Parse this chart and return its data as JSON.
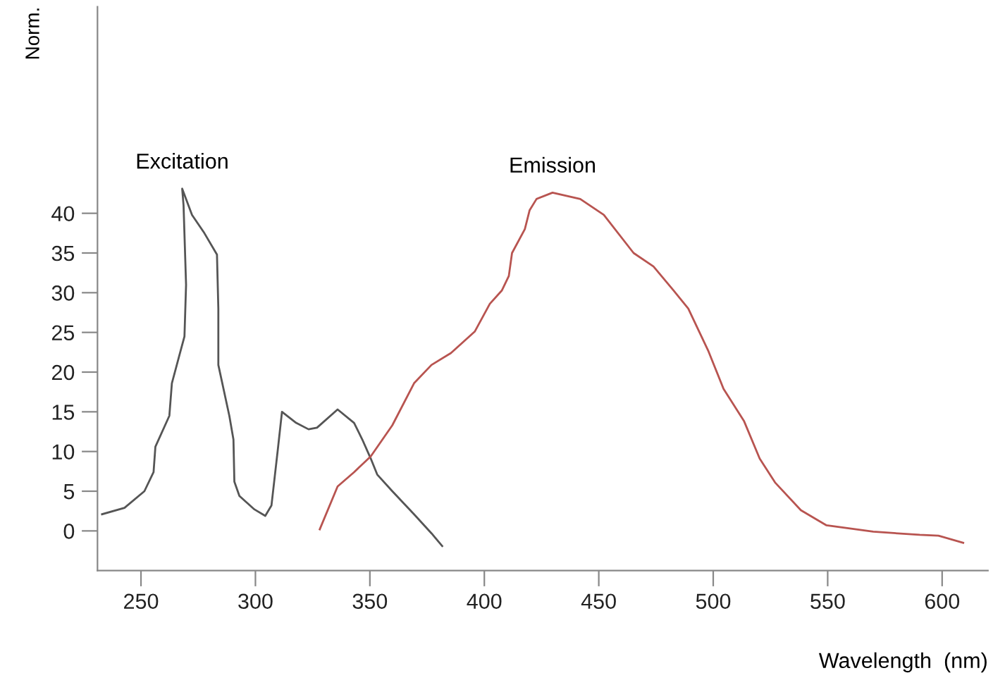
{
  "chart_data": {
    "type": "line",
    "xlabel": "Wavelength  (nm)",
    "ylabel": "Norm.",
    "xlim": [
      231,
      620
    ],
    "xticks": [
      250,
      300,
      350,
      400,
      450,
      500,
      550,
      600
    ],
    "ylim": [
      -5,
      66
    ],
    "yticks": [
      0,
      5,
      10,
      15,
      20,
      25,
      30,
      35,
      40
    ],
    "grid": false,
    "legend": false,
    "marker": "none",
    "line_style": "solid",
    "series": [
      {
        "name": "Excitation",
        "color": "#555555",
        "x": [
          233,
          242.8,
          251.5,
          255.5,
          256.3,
          262.4,
          263.5,
          269,
          269.7,
          268.6,
          268,
          272.3,
          277.7,
          283.2,
          283.8,
          283.8,
          288.6,
          290.4,
          290.8,
          293,
          299.6,
          304.3,
          307,
          309.8,
          311.6,
          317.8,
          323.2,
          326.9,
          335.9,
          343.1,
          346.7,
          350.4,
          353.2,
          359.8,
          369.3,
          376.9,
          381.6
        ],
        "values": [
          2.1,
          2.9,
          5.0,
          7.4,
          10.6,
          14.5,
          18.6,
          24.5,
          31,
          41,
          43.1,
          39.8,
          37.5,
          34.8,
          28,
          20.9,
          14.5,
          11.5,
          6.2,
          4.4,
          2.7,
          1.9,
          3.2,
          10.3,
          15.0,
          13.6,
          12.8,
          13.0,
          15.3,
          13.6,
          11.5,
          9.1,
          7.1,
          5.0,
          2.1,
          -0.3,
          -1.9
        ]
      },
      {
        "name": "Emission",
        "color": "#b85450",
        "x": [
          328.1,
          335.9,
          343.1,
          350.4,
          359.8,
          369.3,
          376.9,
          385.4,
          395.8,
          402.4,
          407.7,
          410.7,
          412.1,
          417.7,
          419.8,
          422.8,
          429.8,
          441.9,
          452.2,
          465.2,
          473.9,
          482.6,
          489.1,
          497.8,
          504.5,
          513.5,
          520.3,
          527.0,
          538.3,
          549.5,
          569.9,
          590.2,
          598.4,
          609.2
        ],
        "values": [
          0.2,
          5.6,
          7.4,
          9.4,
          13.3,
          18.6,
          20.9,
          22.4,
          25.1,
          28.6,
          30.3,
          32.1,
          35.0,
          38.0,
          40.4,
          41.8,
          42.6,
          41.8,
          39.8,
          35.0,
          33.3,
          30.3,
          28.0,
          22.7,
          17.9,
          13.8,
          9.1,
          6.1,
          2.6,
          0.7,
          -0.1,
          -0.5,
          -0.6,
          -1.5
        ]
      }
    ]
  }
}
